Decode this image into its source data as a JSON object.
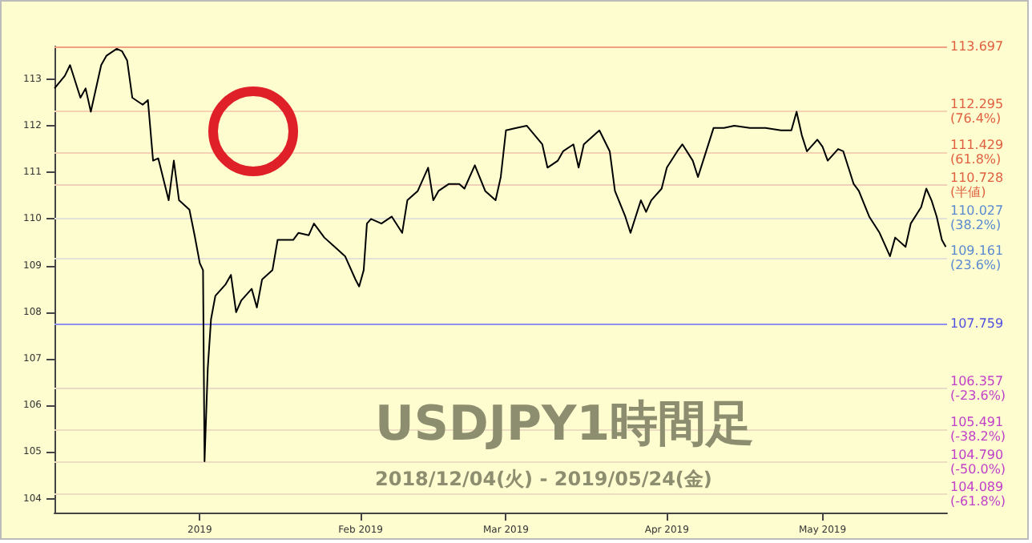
{
  "chart_data": {
    "type": "line",
    "title": "USDJPY1時間足",
    "subtitle": "2018/12/04(火) - 2019/05/24(金)",
    "x": [
      "2018-12-04",
      "2018-12-06",
      "2018-12-07",
      "2018-12-09",
      "2018-12-10",
      "2018-12-11",
      "2018-12-13",
      "2018-12-14",
      "2018-12-16",
      "2018-12-17",
      "2018-12-18",
      "2018-12-19",
      "2018-12-21",
      "2018-12-22",
      "2018-12-23",
      "2018-12-24",
      "2018-12-26",
      "2018-12-27",
      "2018-12-28",
      "2018-12-30",
      "2018-12-31",
      "2019-01-01T00:00",
      "2019-01-01T15:00",
      "2019-01-01T22:00",
      "2019-01-02T13:00",
      "2019-01-03T04:00",
      "2019-01-04",
      "2019-01-06",
      "2019-01-07",
      "2019-01-08",
      "2019-01-09",
      "2019-01-11",
      "2019-01-12",
      "2019-01-13",
      "2019-01-15",
      "2019-01-16",
      "2019-01-19",
      "2019-01-20",
      "2019-01-22",
      "2019-01-23",
      "2019-01-25",
      "2019-01-27",
      "2019-01-29",
      "2019-01-31T00:00",
      "2019-01-31T17:00",
      "2019-02-01T14:00",
      "2019-02-02T05:00",
      "2019-02-03",
      "2019-02-05",
      "2019-02-07",
      "2019-02-09",
      "2019-02-10",
      "2019-02-12",
      "2019-02-14",
      "2019-02-15",
      "2019-02-16",
      "2019-02-18",
      "2019-02-20",
      "2019-02-21",
      "2019-02-23",
      "2019-02-25",
      "2019-02-27",
      "2019-02-28",
      "2019-03-01",
      "2019-03-03",
      "2019-03-05",
      "2019-03-08",
      "2019-03-09",
      "2019-03-11",
      "2019-03-12",
      "2019-03-14",
      "2019-03-15",
      "2019-03-16",
      "2019-03-19",
      "2019-03-21",
      "2019-03-22",
      "2019-03-24",
      "2019-03-25",
      "2019-03-27",
      "2019-03-28",
      "2019-03-29",
      "2019-03-31",
      "2019-04-01",
      "2019-04-03",
      "2019-04-04",
      "2019-04-06",
      "2019-04-07",
      "2019-04-08",
      "2019-04-10",
      "2019-04-12",
      "2019-04-14",
      "2019-04-17",
      "2019-04-20",
      "2019-04-23",
      "2019-04-25",
      "2019-04-26",
      "2019-04-27",
      "2019-04-28",
      "2019-04-30",
      "2019-05-01",
      "2019-05-02",
      "2019-05-04",
      "2019-05-05",
      "2019-05-06",
      "2019-05-07",
      "2019-05-08",
      "2019-05-10",
      "2019-05-12",
      "2019-05-14",
      "2019-05-15",
      "2019-05-17",
      "2019-05-18",
      "2019-05-20",
      "2019-05-21",
      "2019-05-22",
      "2019-05-23",
      "2019-05-24T00:00",
      "2019-05-24T18:00"
    ],
    "series": [
      {
        "color": "#000000",
        "values": [
          112.8,
          113.07,
          113.3,
          112.6,
          112.8,
          112.3,
          113.3,
          113.5,
          113.65,
          113.6,
          113.4,
          112.6,
          112.45,
          112.55,
          111.25,
          111.3,
          110.4,
          111.25,
          110.4,
          110.2,
          109.65,
          109.05,
          108.9,
          104.8,
          106.8,
          107.85,
          108.35,
          108.6,
          108.8,
          108.0,
          108.25,
          108.5,
          108.1,
          108.7,
          108.9,
          109.55,
          109.55,
          109.7,
          109.65,
          109.9,
          109.6,
          109.4,
          109.2,
          108.7,
          108.55,
          108.9,
          109.9,
          110.0,
          109.9,
          110.05,
          109.7,
          110.4,
          110.6,
          111.1,
          110.4,
          110.6,
          110.75,
          110.75,
          110.65,
          111.15,
          110.6,
          110.4,
          110.9,
          111.9,
          111.95,
          112.0,
          111.6,
          111.1,
          111.25,
          111.45,
          111.6,
          111.1,
          111.6,
          111.9,
          111.45,
          110.6,
          110.05,
          109.7,
          110.4,
          110.15,
          110.4,
          110.65,
          111.1,
          111.45,
          111.6,
          111.25,
          110.9,
          111.25,
          111.95,
          111.95,
          112.0,
          111.95,
          111.95,
          111.9,
          111.9,
          112.3,
          111.8,
          111.45,
          111.7,
          111.55,
          111.25,
          111.5,
          111.45,
          111.1,
          110.75,
          110.6,
          110.05,
          109.7,
          109.2,
          109.6,
          109.4,
          109.9,
          110.25,
          110.65,
          110.4,
          110.05,
          109.55,
          109.4
        ]
      }
    ],
    "xlim": [
      "2018-12-04",
      "2019-05-25"
    ],
    "xticks": [
      {
        "value": "2019-01-01",
        "label": "2019"
      },
      {
        "value": "2019-02-01",
        "label": "Feb 2019"
      },
      {
        "value": "2019-03-01",
        "label": "Mar 2019"
      },
      {
        "value": "2019-04-01",
        "label": "Apr 2019"
      },
      {
        "value": "2019-05-01",
        "label": "May 2019"
      }
    ],
    "ylim": [
      103.7,
      113.7
    ],
    "yticks": [
      104,
      105,
      106,
      107,
      108,
      109,
      110,
      111,
      112,
      113
    ],
    "grid": false,
    "marker": "none",
    "line_style": "solid",
    "ref_lines": [
      {
        "axis": "y",
        "value": 113.697,
        "label": "113.697",
        "color": "#f0a080"
      },
      {
        "axis": "y",
        "value": 112.295,
        "label": "112.295\n(76.4%)",
        "color": "#f6d2b4"
      },
      {
        "axis": "y",
        "value": 111.429,
        "label": "111.429\n(61.8%)",
        "color": "#f6d2b4"
      },
      {
        "axis": "y",
        "value": 110.728,
        "label": "110.728\n(半値)",
        "color": "#f0d0b8"
      },
      {
        "axis": "y",
        "value": 110.027,
        "label": "110.027\n(38.2%)",
        "color": "#e2e2d8"
      },
      {
        "axis": "y",
        "value": 109.161,
        "label": "109.161\n(23.6%)",
        "color": "#e2e2d8"
      },
      {
        "axis": "y",
        "value": 107.759,
        "label": "107.759",
        "color": "#9090f0"
      },
      {
        "axis": "y",
        "value": 106.357,
        "label": "106.357\n(-23.6%)",
        "color": "#e8dcc8"
      },
      {
        "axis": "y",
        "value": 105.491,
        "label": "105.491\n(-38.2%)",
        "color": "#ecdcc0"
      },
      {
        "axis": "y",
        "value": 104.79,
        "label": "104.790\n(-50.0%)",
        "color": "#ecdcc0"
      },
      {
        "axis": "y",
        "value": 104.089,
        "label": "104.089\n(-61.8%)",
        "color": "#ecdcc0"
      }
    ]
  }
}
